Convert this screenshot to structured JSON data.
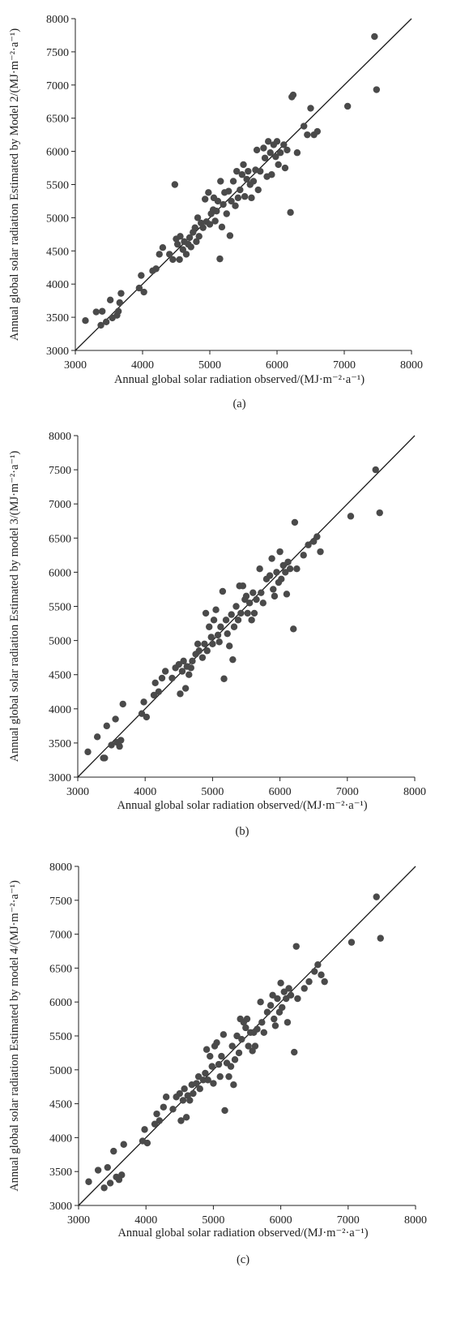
{
  "chart_data": [
    {
      "type": "scatter",
      "panel": "(a)",
      "xlabel": "Annual global solar radiation observed/(MJ·m⁻²·a⁻¹)",
      "ylabel": "Annual global solar radiation Estimated by Model 2/(MJ·m⁻²·a⁻¹)",
      "xlim": [
        3000,
        8000
      ],
      "ylim": [
        3000,
        8000
      ],
      "xticks": [
        3000,
        4000,
        5000,
        6000,
        7000,
        8000
      ],
      "yticks": [
        3000,
        3500,
        4000,
        4500,
        5000,
        5500,
        6000,
        6500,
        7000,
        7500,
        8000
      ],
      "reference_line": "1:1",
      "grid": false,
      "points": [
        [
          3150,
          3450
        ],
        [
          3310,
          3580
        ],
        [
          3380,
          3380
        ],
        [
          3400,
          3590
        ],
        [
          3460,
          3430
        ],
        [
          3520,
          3760
        ],
        [
          3550,
          3490
        ],
        [
          3620,
          3530
        ],
        [
          3640,
          3590
        ],
        [
          3660,
          3720
        ],
        [
          3680,
          3860
        ],
        [
          3950,
          3940
        ],
        [
          3980,
          4130
        ],
        [
          4020,
          3880
        ],
        [
          4150,
          4200
        ],
        [
          4200,
          4230
        ],
        [
          4250,
          4450
        ],
        [
          4300,
          4550
        ],
        [
          4400,
          4450
        ],
        [
          4450,
          4370
        ],
        [
          4480,
          5500
        ],
        [
          4500,
          4680
        ],
        [
          4520,
          4600
        ],
        [
          4550,
          4370
        ],
        [
          4560,
          4720
        ],
        [
          4600,
          4520
        ],
        [
          4620,
          4640
        ],
        [
          4650,
          4450
        ],
        [
          4680,
          4600
        ],
        [
          4700,
          4700
        ],
        [
          4720,
          4560
        ],
        [
          4750,
          4780
        ],
        [
          4780,
          4850
        ],
        [
          4800,
          4640
        ],
        [
          4820,
          5000
        ],
        [
          4840,
          4720
        ],
        [
          4870,
          4920
        ],
        [
          4900,
          4850
        ],
        [
          4930,
          5280
        ],
        [
          4950,
          4940
        ],
        [
          4980,
          5380
        ],
        [
          5000,
          4900
        ],
        [
          5020,
          5060
        ],
        [
          5050,
          5120
        ],
        [
          5060,
          5300
        ],
        [
          5080,
          4950
        ],
        [
          5100,
          5100
        ],
        [
          5120,
          5250
        ],
        [
          5150,
          4380
        ],
        [
          5160,
          5550
        ],
        [
          5180,
          4860
        ],
        [
          5200,
          5200
        ],
        [
          5220,
          5380
        ],
        [
          5250,
          5060
        ],
        [
          5280,
          5400
        ],
        [
          5300,
          4730
        ],
        [
          5320,
          5250
        ],
        [
          5350,
          5550
        ],
        [
          5380,
          5180
        ],
        [
          5400,
          5700
        ],
        [
          5420,
          5300
        ],
        [
          5450,
          5420
        ],
        [
          5480,
          5650
        ],
        [
          5500,
          5800
        ],
        [
          5520,
          5320
        ],
        [
          5550,
          5580
        ],
        [
          5570,
          5700
        ],
        [
          5600,
          5500
        ],
        [
          5620,
          5300
        ],
        [
          5650,
          5550
        ],
        [
          5680,
          5720
        ],
        [
          5700,
          6020
        ],
        [
          5720,
          5420
        ],
        [
          5750,
          5700
        ],
        [
          5800,
          6050
        ],
        [
          5820,
          5900
        ],
        [
          5850,
          5620
        ],
        [
          5870,
          6150
        ],
        [
          5900,
          5980
        ],
        [
          5920,
          5650
        ],
        [
          5950,
          6100
        ],
        [
          5980,
          5920
        ],
        [
          6000,
          6150
        ],
        [
          6020,
          5800
        ],
        [
          6050,
          5980
        ],
        [
          6100,
          6100
        ],
        [
          6120,
          5750
        ],
        [
          6150,
          6020
        ],
        [
          6200,
          5080
        ],
        [
          6220,
          6820
        ],
        [
          6240,
          6850
        ],
        [
          6300,
          5980
        ],
        [
          6400,
          6380
        ],
        [
          6450,
          6250
        ],
        [
          6500,
          6650
        ],
        [
          6550,
          6250
        ],
        [
          6600,
          6300
        ],
        [
          7050,
          6680
        ],
        [
          7450,
          7730
        ],
        [
          7480,
          6930
        ]
      ]
    },
    {
      "type": "scatter",
      "panel": "(b)",
      "xlabel": "Annual global solar radiation observed/(MJ·m⁻²·a⁻¹)",
      "ylabel": "Annual global solar radiation Estimated by model 3/(MJ·m⁻²·a⁻¹)",
      "xlim": [
        3000,
        8000
      ],
      "ylim": [
        3000,
        8000
      ],
      "xticks": [
        3000,
        4000,
        5000,
        6000,
        7000,
        8000
      ],
      "yticks": [
        3000,
        3500,
        4000,
        4500,
        5000,
        5500,
        6000,
        6500,
        7000,
        7500,
        8000
      ],
      "reference_line": "1:1",
      "grid": false,
      "points": [
        [
          3150,
          3370
        ],
        [
          3290,
          3590
        ],
        [
          3380,
          3280
        ],
        [
          3400,
          3280
        ],
        [
          3430,
          3750
        ],
        [
          3500,
          3470
        ],
        [
          3560,
          3850
        ],
        [
          3580,
          3510
        ],
        [
          3620,
          3450
        ],
        [
          3640,
          3540
        ],
        [
          3670,
          4070
        ],
        [
          3950,
          3930
        ],
        [
          3980,
          4100
        ],
        [
          4020,
          3880
        ],
        [
          4130,
          4200
        ],
        [
          4150,
          4380
        ],
        [
          4200,
          4250
        ],
        [
          4250,
          4450
        ],
        [
          4300,
          4550
        ],
        [
          4400,
          4450
        ],
        [
          4450,
          4600
        ],
        [
          4500,
          4650
        ],
        [
          4520,
          4220
        ],
        [
          4550,
          4550
        ],
        [
          4570,
          4700
        ],
        [
          4600,
          4300
        ],
        [
          4620,
          4620
        ],
        [
          4650,
          4500
        ],
        [
          4680,
          4600
        ],
        [
          4700,
          4700
        ],
        [
          4750,
          4800
        ],
        [
          4780,
          4950
        ],
        [
          4800,
          4850
        ],
        [
          4850,
          4750
        ],
        [
          4880,
          4950
        ],
        [
          4900,
          5400
        ],
        [
          4920,
          4850
        ],
        [
          4950,
          5200
        ],
        [
          4980,
          5050
        ],
        [
          5000,
          4950
        ],
        [
          5020,
          5300
        ],
        [
          5050,
          5450
        ],
        [
          5080,
          5080
        ],
        [
          5100,
          4980
        ],
        [
          5120,
          5200
        ],
        [
          5150,
          5720
        ],
        [
          5170,
          4440
        ],
        [
          5200,
          5300
        ],
        [
          5220,
          5100
        ],
        [
          5250,
          4920
        ],
        [
          5280,
          5380
        ],
        [
          5300,
          4720
        ],
        [
          5320,
          5200
        ],
        [
          5350,
          5500
        ],
        [
          5380,
          5300
        ],
        [
          5400,
          5800
        ],
        [
          5420,
          5400
        ],
        [
          5450,
          5800
        ],
        [
          5480,
          5600
        ],
        [
          5500,
          5650
        ],
        [
          5520,
          5400
        ],
        [
          5550,
          5550
        ],
        [
          5580,
          5300
        ],
        [
          5600,
          5700
        ],
        [
          5620,
          5400
        ],
        [
          5650,
          5600
        ],
        [
          5700,
          6050
        ],
        [
          5720,
          5700
        ],
        [
          5750,
          5550
        ],
        [
          5800,
          5900
        ],
        [
          5850,
          5950
        ],
        [
          5880,
          6200
        ],
        [
          5900,
          5750
        ],
        [
          5920,
          5650
        ],
        [
          5950,
          6000
        ],
        [
          5980,
          5850
        ],
        [
          6000,
          6300
        ],
        [
          6020,
          5900
        ],
        [
          6050,
          6100
        ],
        [
          6080,
          6000
        ],
        [
          6100,
          5680
        ],
        [
          6120,
          6150
        ],
        [
          6150,
          6050
        ],
        [
          6200,
          5170
        ],
        [
          6220,
          6730
        ],
        [
          6250,
          6050
        ],
        [
          6350,
          6250
        ],
        [
          6420,
          6400
        ],
        [
          6500,
          6450
        ],
        [
          6550,
          6520
        ],
        [
          6600,
          6300
        ],
        [
          7050,
          6820
        ],
        [
          7420,
          7500
        ],
        [
          7480,
          6870
        ]
      ]
    },
    {
      "type": "scatter",
      "panel": "(c)",
      "xlabel": "Annual global solar radiation observed/(MJ·m⁻²·a⁻¹)",
      "ylabel": "Annual global solar radiation Estimated by model 4/(MJ·m⁻²·a⁻¹)",
      "xlim": [
        3000,
        8000
      ],
      "ylim": [
        3000,
        8000
      ],
      "xticks": [
        3000,
        4000,
        5000,
        6000,
        7000,
        8000
      ],
      "yticks": [
        3000,
        3500,
        4000,
        4500,
        5000,
        5500,
        6000,
        6500,
        7000,
        7500,
        8000
      ],
      "reference_line": "1:1",
      "grid": false,
      "points": [
        [
          3150,
          3350
        ],
        [
          3290,
          3520
        ],
        [
          3380,
          3260
        ],
        [
          3430,
          3560
        ],
        [
          3470,
          3330
        ],
        [
          3520,
          3800
        ],
        [
          3560,
          3420
        ],
        [
          3600,
          3380
        ],
        [
          3640,
          3450
        ],
        [
          3670,
          3900
        ],
        [
          3950,
          3950
        ],
        [
          3980,
          4120
        ],
        [
          4020,
          3920
        ],
        [
          4130,
          4200
        ],
        [
          4160,
          4350
        ],
        [
          4200,
          4250
        ],
        [
          4260,
          4450
        ],
        [
          4300,
          4600
        ],
        [
          4400,
          4420
        ],
        [
          4450,
          4600
        ],
        [
          4500,
          4650
        ],
        [
          4520,
          4250
        ],
        [
          4550,
          4550
        ],
        [
          4570,
          4720
        ],
        [
          4600,
          4300
        ],
        [
          4620,
          4620
        ],
        [
          4650,
          4550
        ],
        [
          4680,
          4780
        ],
        [
          4700,
          4650
        ],
        [
          4750,
          4800
        ],
        [
          4780,
          4900
        ],
        [
          4800,
          4720
        ],
        [
          4850,
          4850
        ],
        [
          4880,
          4950
        ],
        [
          4900,
          5300
        ],
        [
          4920,
          4850
        ],
        [
          4950,
          5200
        ],
        [
          4980,
          5050
        ],
        [
          5000,
          4800
        ],
        [
          5020,
          5350
        ],
        [
          5050,
          5400
        ],
        [
          5080,
          5080
        ],
        [
          5100,
          4900
        ],
        [
          5120,
          5200
        ],
        [
          5150,
          5520
        ],
        [
          5170,
          4400
        ],
        [
          5200,
          5100
        ],
        [
          5230,
          4900
        ],
        [
          5260,
          5050
        ],
        [
          5280,
          5350
        ],
        [
          5300,
          4780
        ],
        [
          5320,
          5150
        ],
        [
          5350,
          5500
        ],
        [
          5380,
          5250
        ],
        [
          5400,
          5750
        ],
        [
          5420,
          5450
        ],
        [
          5450,
          5700
        ],
        [
          5480,
          5620
        ],
        [
          5500,
          5750
        ],
        [
          5520,
          5350
        ],
        [
          5550,
          5550
        ],
        [
          5580,
          5280
        ],
        [
          5600,
          5550
        ],
        [
          5620,
          5350
        ],
        [
          5650,
          5600
        ],
        [
          5700,
          6000
        ],
        [
          5720,
          5700
        ],
        [
          5750,
          5550
        ],
        [
          5800,
          5850
        ],
        [
          5850,
          5950
        ],
        [
          5880,
          6100
        ],
        [
          5900,
          5750
        ],
        [
          5920,
          5650
        ],
        [
          5950,
          6050
        ],
        [
          5980,
          5850
        ],
        [
          6000,
          6280
        ],
        [
          6020,
          5920
        ],
        [
          6050,
          6150
        ],
        [
          6080,
          6050
        ],
        [
          6100,
          5700
        ],
        [
          6120,
          6200
        ],
        [
          6150,
          6100
        ],
        [
          6200,
          5260
        ],
        [
          6230,
          6820
        ],
        [
          6250,
          6050
        ],
        [
          6350,
          6200
        ],
        [
          6420,
          6300
        ],
        [
          6500,
          6450
        ],
        [
          6550,
          6550
        ],
        [
          6600,
          6400
        ],
        [
          6650,
          6300
        ],
        [
          7050,
          6880
        ],
        [
          7420,
          7550
        ],
        [
          7480,
          6940
        ]
      ]
    }
  ],
  "colors": {
    "point": "#4a4a4a",
    "line": "#1a1a1a",
    "axis": "#222222"
  },
  "panel_labels": [
    "(a)",
    "(b)",
    "(c)"
  ]
}
